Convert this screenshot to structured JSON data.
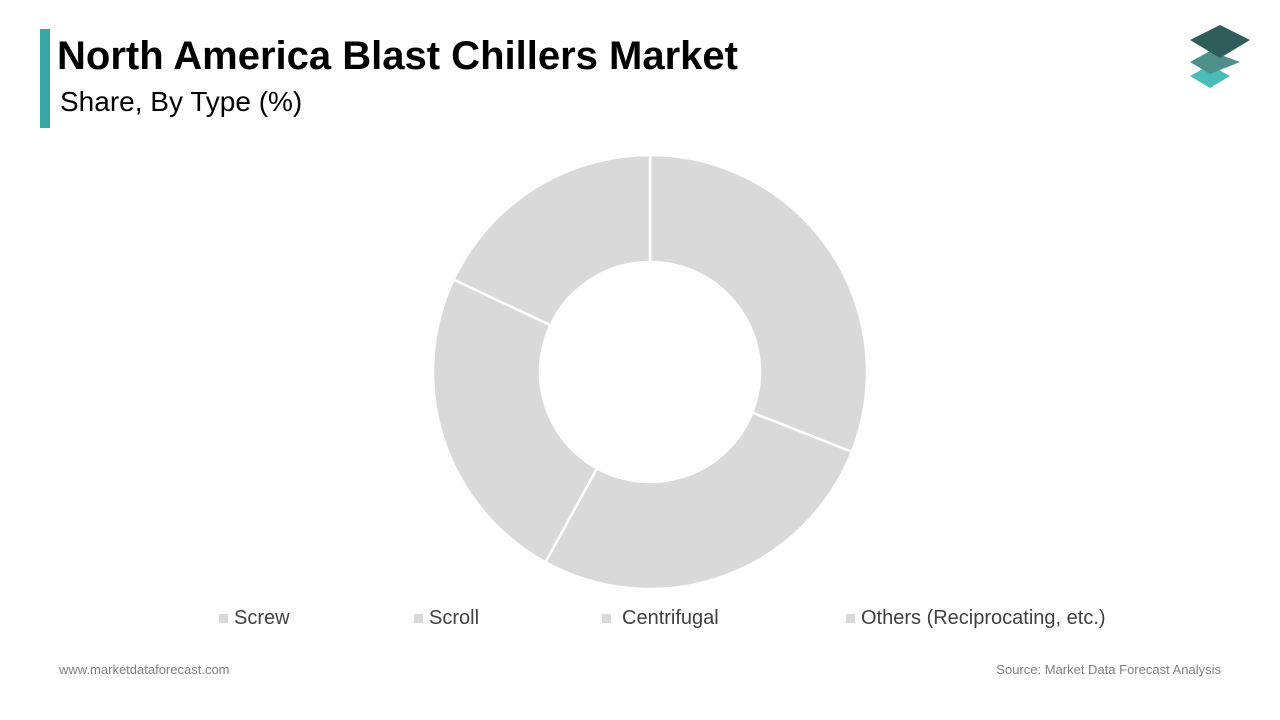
{
  "header": {
    "title": "North America Blast Chillers Market",
    "subtitle": "Share, By Type (%)",
    "accent_color": "#3aa6a4"
  },
  "logo": {
    "icon": "stacked-layers-logo-icon",
    "colors": [
      "#2f5d59",
      "#4e8f89",
      "#4bbdb7"
    ]
  },
  "chart_data": {
    "type": "pie",
    "subtype": "donut",
    "title": "North America Blast Chillers Market",
    "subtitle": "Share, By Type (%)",
    "categories": [
      "Screw",
      "Scroll",
      "Centrifugal",
      "Others (Reciprocating, etc.)"
    ],
    "values": [
      31,
      27,
      24,
      18
    ],
    "colors": [
      "#d9d9d9",
      "#d9d9d9",
      "#d9d9d9",
      "#d9d9d9"
    ],
    "separator_color": "#ffffff",
    "legend_position": "bottom",
    "data_labels": false
  },
  "legend": {
    "swatch_color": "#d9d9d9",
    "items": [
      "Screw",
      "Scroll",
      "Centrifugal",
      "Others (Reciprocating, etc.)"
    ]
  },
  "footer": {
    "website": "www.marketdataforecast.com",
    "source": "Source: Market Data Forecast Analysis"
  }
}
